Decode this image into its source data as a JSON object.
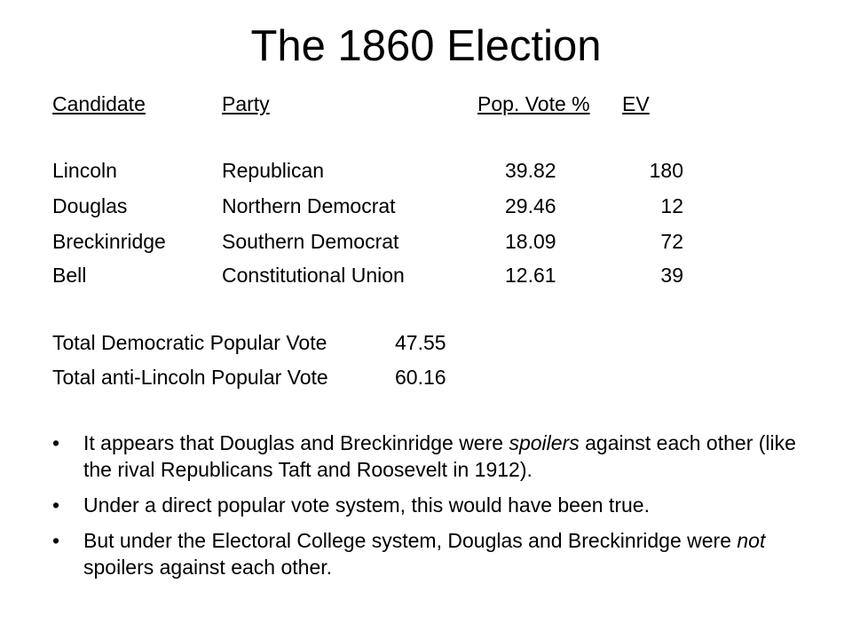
{
  "title": "The 1860 Election",
  "table": {
    "headers": {
      "candidate": "Candidate",
      "party": "Party",
      "pop_vote": "Pop. Vote %",
      "ev": "EV"
    },
    "rows": [
      {
        "candidate": "Lincoln",
        "party": "Republican",
        "pop_vote": "39.82",
        "ev": "180"
      },
      {
        "candidate": "Douglas",
        "party": "Northern Democrat",
        "pop_vote": "29.46",
        "ev": "12"
      },
      {
        "candidate": "Breckinridge",
        "party": "Southern Democrat",
        "pop_vote": "18.09",
        "ev": "72"
      },
      {
        "candidate": "Bell",
        "party": "Constitutional Union",
        "pop_vote": "12.61",
        "ev": "39"
      }
    ]
  },
  "totals": [
    {
      "label": "Total Democratic Popular Vote",
      "value": "47.55"
    },
    {
      "label": "Total anti-Lincoln Popular Vote",
      "value": "60.16"
    }
  ],
  "bullet_symbol": "•",
  "bullets": [
    {
      "a": "It appears that Douglas and Breckinridge were ",
      "em": "spoilers",
      "b": " against each other (like the rival Republicans Taft and Roosevelt in 1912)."
    },
    {
      "a": "Under a direct popular vote system, this would have been true."
    },
    {
      "a": "But under the Electoral College system, Douglas and Breckinridge were ",
      "em": "not",
      "b": " spoilers against each other."
    }
  ]
}
